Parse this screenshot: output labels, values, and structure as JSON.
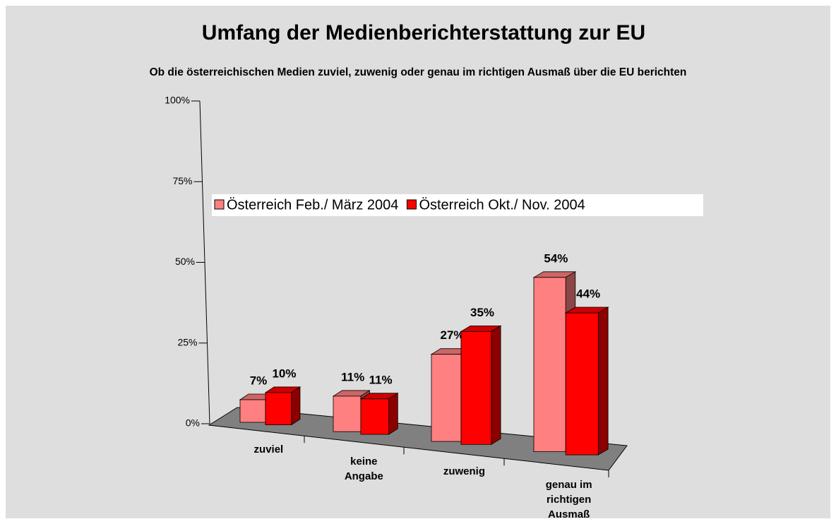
{
  "chart_data": {
    "type": "bar3d",
    "title": "Umfang der Medienberichterstattung zur EU",
    "subtitle": "Ob die österreichischen Medien zuviel, zuwenig oder genau im richtigen Ausmaß über die EU berichten",
    "categories": [
      "zuviel",
      "keine Angabe",
      "zuwenig",
      "genau im richtigen Ausmaß"
    ],
    "series": [
      {
        "name": "Österreich Feb./ März 2004",
        "color": "#ff8080",
        "values": [
          7,
          11,
          27,
          54
        ],
        "value_labels": [
          "7%",
          "11%",
          "27%",
          "54%"
        ]
      },
      {
        "name": "Österreich Okt./ Nov. 2004",
        "color": "#ff0000",
        "values": [
          10,
          11,
          35,
          44
        ],
        "value_labels": [
          "10%",
          "11%",
          "35%",
          "44%"
        ]
      }
    ],
    "ylim": [
      0,
      100
    ],
    "yticks": [
      {
        "value": 0,
        "label": "0%"
      },
      {
        "value": 25,
        "label": "25%"
      },
      {
        "value": 50,
        "label": "50%"
      },
      {
        "value": 75,
        "label": "75%"
      },
      {
        "value": 100,
        "label": "100%"
      }
    ]
  }
}
